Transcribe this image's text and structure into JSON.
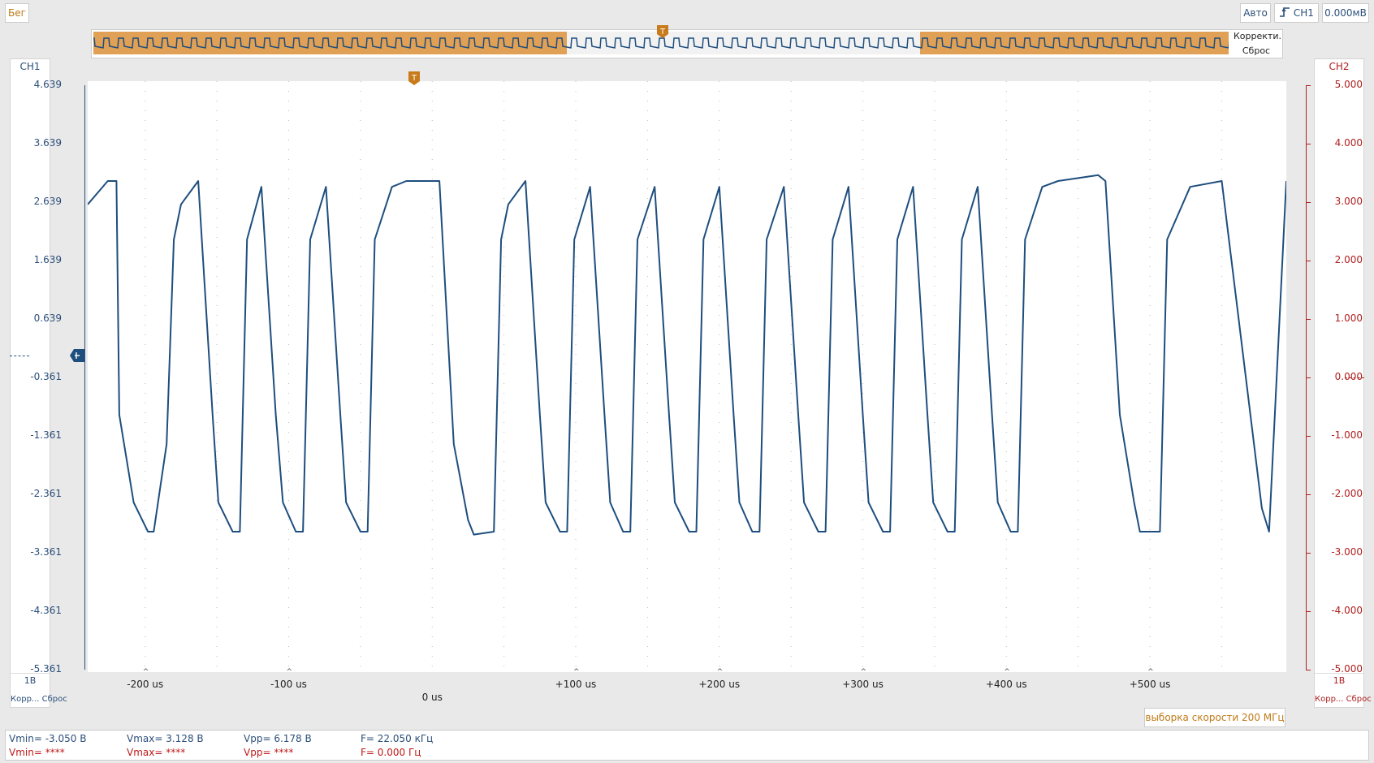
{
  "toolbar": {
    "run_label": "Бег",
    "mode_label": "Авто",
    "trigger_source": "CH1",
    "trigger_level": "0.000мВ",
    "trigger_edge_icon": "rising-edge-icon"
  },
  "overview": {
    "correct_label": "Корректи...",
    "reset_label": "Сброс",
    "marker": "T"
  },
  "ch1": {
    "title": "CH1",
    "scale": "1В",
    "correct_label": "Корр...",
    "reset_label": "Сброс",
    "color": "#1e4e7e",
    "y_labels": [
      "4.639",
      "3.639",
      "2.639",
      "1.639",
      "0.639",
      "-0.361",
      "-1.361",
      "-2.361",
      "-3.361",
      "-4.361",
      "-5.361"
    ]
  },
  "ch2": {
    "title": "CH2",
    "scale": "1В",
    "correct_label": "Корр...",
    "reset_label": "Сброс",
    "color": "#b02020",
    "y_labels": [
      "5.000",
      "4.000",
      "3.000",
      "2.000",
      "1.000",
      "0.000",
      "-1.000",
      "-2.000",
      "-3.000",
      "-4.000",
      "-5.000"
    ]
  },
  "trigger_marker": "T",
  "x_labels": [
    "-200 us",
    "-100 us",
    "0 us",
    "+100 us",
    "+200 us",
    "+300 us",
    "+400 us",
    "+500 us"
  ],
  "sample_rate": "выборка скорости 200 МГц",
  "measurements": {
    "ch1": {
      "vmin": "Vmin= -3.050 В",
      "vmax": "Vmax= 3.128 В",
      "vpp": "Vpp= 6.178 В",
      "freq": "F= 22.050 кГц"
    },
    "ch2": {
      "vmin": "Vmin= ****",
      "vmax": "Vmax= ****",
      "vpp": "Vpp= ****",
      "freq": "F= 0.000 Гц"
    }
  },
  "chart_data": {
    "type": "line",
    "title": "",
    "xlabel": "",
    "ylabel": "",
    "x_unit": "us",
    "xlim": [
      -240,
      595
    ],
    "ylim": [
      -5.361,
      4.639
    ],
    "grid": true,
    "series": [
      {
        "name": "CH1",
        "color": "#1e4e7e",
        "x": [
          -240,
          -226,
          -220,
          -218,
          -208,
          -198,
          -194,
          -185,
          -180,
          -175,
          -163,
          -153,
          -149,
          -139,
          -134,
          -129,
          -119,
          -109,
          -104,
          -95,
          -90,
          -85,
          -74,
          -64,
          -60,
          -50,
          -45,
          -40,
          -28,
          -18,
          0,
          5,
          15,
          25,
          29,
          43,
          48,
          53,
          65,
          75,
          79,
          89,
          94,
          99,
          110,
          120,
          124,
          133,
          138,
          143,
          155,
          165,
          169,
          179,
          184,
          189,
          200,
          210,
          214,
          223,
          228,
          233,
          245,
          255,
          259,
          269,
          274,
          279,
          290,
          300,
          304,
          314,
          319,
          324,
          335,
          345,
          349,
          359,
          364,
          369,
          380,
          390,
          394,
          403,
          408,
          413,
          425,
          436,
          464,
          469,
          479,
          489,
          493,
          502,
          507,
          512,
          528,
          550,
          570,
          578,
          583,
          595
        ],
        "values": [
          2.6,
          3.0,
          3.0,
          -1.0,
          -2.5,
          -3.0,
          -3.0,
          -1.5,
          2.0,
          2.6,
          3.0,
          -1.0,
          -2.5,
          -3.0,
          -3.0,
          2.0,
          2.9,
          -1.0,
          -2.5,
          -3.0,
          -3.0,
          2.0,
          2.9,
          -1.0,
          -2.5,
          -3.0,
          -3.0,
          2.0,
          2.9,
          3.0,
          3.0,
          3.0,
          -1.5,
          -2.8,
          -3.05,
          -3.0,
          2.0,
          2.6,
          3.0,
          -1.0,
          -2.5,
          -3.0,
          -3.0,
          2.0,
          2.9,
          -1.0,
          -2.5,
          -3.0,
          -3.0,
          2.0,
          2.9,
          -1.0,
          -2.5,
          -3.0,
          -3.0,
          2.0,
          2.9,
          -1.0,
          -2.5,
          -3.0,
          -3.0,
          2.0,
          2.9,
          -1.0,
          -2.5,
          -3.0,
          -3.0,
          2.0,
          2.9,
          -1.0,
          -2.5,
          -3.0,
          -3.0,
          2.0,
          2.9,
          -1.0,
          -2.5,
          -3.0,
          -3.0,
          2.0,
          2.9,
          -1.0,
          -2.5,
          -3.0,
          -3.0,
          2.0,
          2.9,
          3.0,
          3.1,
          3.0,
          -1.0,
          -2.5,
          -3.0,
          -3.0,
          -3.0,
          2.0,
          2.9,
          3.0,
          -1.0,
          -2.6,
          -3.0,
          3.0
        ]
      }
    ]
  }
}
